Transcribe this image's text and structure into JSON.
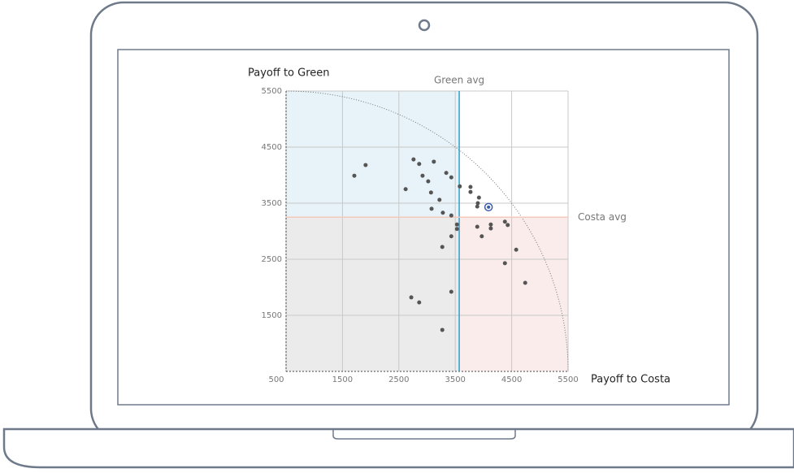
{
  "chart_data": {
    "type": "scatter",
    "ylabel": "Payoff to Green",
    "xlabel": "Payoff to Costa",
    "xlim": [
      500,
      5500
    ],
    "ylim": [
      500,
      5500
    ],
    "xticks": [
      500,
      1500,
      2500,
      3500,
      4500,
      5500
    ],
    "yticks": [
      1500,
      2500,
      3500,
      4500,
      5500
    ],
    "grid": true,
    "series": [
      {
        "color": "#555555",
        "x": [
          1710,
          1910,
          2760,
          2860,
          3120,
          3340,
          2920,
          3430,
          3020,
          2620,
          3070,
          3580,
          3770,
          3770,
          3920,
          3220,
          3900,
          3890,
          3080,
          3280,
          3430,
          3530,
          3530,
          4130,
          4130,
          3890,
          4380,
          4430,
          3430,
          3970,
          3270,
          4580,
          4380,
          4740,
          3430,
          2720,
          2860,
          3270
        ],
        "values": [
          3990,
          4180,
          4280,
          4200,
          4240,
          4040,
          3990,
          3960,
          3890,
          3750,
          3690,
          3800,
          3790,
          3700,
          3600,
          3560,
          3500,
          3440,
          3400,
          3330,
          3280,
          3120,
          3040,
          3120,
          3050,
          3080,
          3170,
          3110,
          2910,
          2910,
          2720,
          2670,
          2430,
          2080,
          1920,
          1820,
          1730,
          1240
        ]
      }
    ],
    "highlight": {
      "x": 4090,
      "value": 3430,
      "color": "#3b5ba9"
    },
    "reference_lines": [
      {
        "label": "Green avg",
        "axis": "x",
        "value": 3570,
        "color": "#2a9fd0"
      },
      {
        "label": "Costa avg",
        "axis": "y",
        "value": 3250,
        "color": "#f4c9bd"
      }
    ],
    "region_colors": {
      "upper_left": "#e7f3f8",
      "upper_right": "#ffffff",
      "lower_left": "#ebebeb",
      "lower_right": "#f9ecea"
    }
  }
}
